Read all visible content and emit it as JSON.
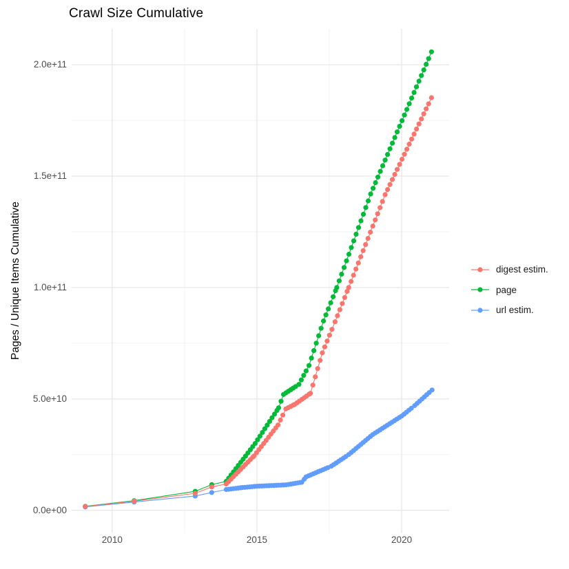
{
  "title": "Crawl Size Cumulative",
  "y_axis": {
    "title": "Pages / Unique Items Cumulative",
    "ticks": [
      {
        "value": 0,
        "label": "0.0e+00"
      },
      {
        "value": 50,
        "label": "5.0e+10"
      },
      {
        "value": 100,
        "label": "1.0e+11"
      },
      {
        "value": 150,
        "label": "1.5e+11"
      },
      {
        "value": 200,
        "label": "2.0e+11"
      }
    ],
    "minor_ticks": [
      25,
      75,
      125,
      175
    ]
  },
  "x_axis": {
    "title": "",
    "ticks": [
      {
        "value": 2010,
        "label": "2010"
      },
      {
        "value": 2015,
        "label": "2015"
      },
      {
        "value": 2020,
        "label": "2020"
      }
    ],
    "minor_ticks": [
      2012.5,
      2017.5
    ]
  },
  "legend": {
    "items": [
      {
        "label": "digest estim.",
        "color": "#F8766D"
      },
      {
        "label": "page",
        "color": "#00BA38"
      },
      {
        "label": "url estim.",
        "color": "#619CFF"
      }
    ]
  },
  "style": {
    "grid_major_color": "#E8E8E8",
    "grid_minor_color": "#F1F1F1",
    "point_radius": 3.6,
    "line_width": 1.1
  },
  "chart_data": {
    "type": "scatter",
    "title": "Crawl Size Cumulative",
    "xlabel": "",
    "ylabel": "Pages / Unique Items Cumulative",
    "values_unit": "billions (1e9 items); y tick labels shown in scientific notation",
    "x_range": [
      2008.6,
      2021.64
    ],
    "y_range": [
      -10.3,
      216.1
    ],
    "grid": true,
    "legend_position": "right",
    "dense_sampling_from": 2013.94,
    "sample_step_years": 0.08333,
    "series": [
      {
        "name": "digest estim.",
        "color": "#F8766D",
        "points": [
          [
            2009.07,
            1.7
          ],
          [
            2010.76,
            4.1
          ],
          [
            2012.87,
            7.6
          ],
          [
            2013.44,
            10.5
          ],
          [
            2013.94,
            11.8
          ],
          [
            2014.9,
            24.4
          ],
          [
            2015.73,
            38.3
          ],
          [
            2016.0,
            45.5
          ],
          [
            2016.3,
            47.5
          ],
          [
            2016.85,
            52.5
          ],
          [
            2017.26,
            70.7
          ],
          [
            2017.7,
            84.6
          ],
          [
            2018.17,
            100.0
          ],
          [
            2019.43,
            141.7
          ],
          [
            2021.03,
            185.2
          ]
        ]
      },
      {
        "name": "page",
        "color": "#00BA38",
        "points": [
          [
            2009.07,
            1.8
          ],
          [
            2010.76,
            4.3
          ],
          [
            2012.87,
            8.5
          ],
          [
            2013.44,
            11.5
          ],
          [
            2013.94,
            13.0
          ],
          [
            2014.94,
            30.0
          ],
          [
            2015.75,
            46.0
          ],
          [
            2015.92,
            52.0
          ],
          [
            2016.45,
            56.5
          ],
          [
            2016.8,
            65.0
          ],
          [
            2017.3,
            85.0
          ],
          [
            2017.76,
            100.0
          ],
          [
            2018.93,
            142.0
          ],
          [
            2021.03,
            205.8
          ]
        ]
      },
      {
        "name": "url estim.",
        "color": "#619CFF",
        "points": [
          [
            2009.07,
            1.5
          ],
          [
            2010.76,
            3.7
          ],
          [
            2012.87,
            6.4
          ],
          [
            2013.44,
            8.0
          ],
          [
            2013.94,
            9.3
          ],
          [
            2014.5,
            10.2
          ],
          [
            2015.0,
            10.8
          ],
          [
            2016.0,
            11.4
          ],
          [
            2016.55,
            12.6
          ],
          [
            2016.7,
            15.0
          ],
          [
            2017.57,
            19.8
          ],
          [
            2018.17,
            25.0
          ],
          [
            2019.0,
            34.0
          ],
          [
            2020.0,
            42.3
          ],
          [
            2020.45,
            47.0
          ],
          [
            2021.05,
            54.0
          ]
        ]
      }
    ]
  }
}
